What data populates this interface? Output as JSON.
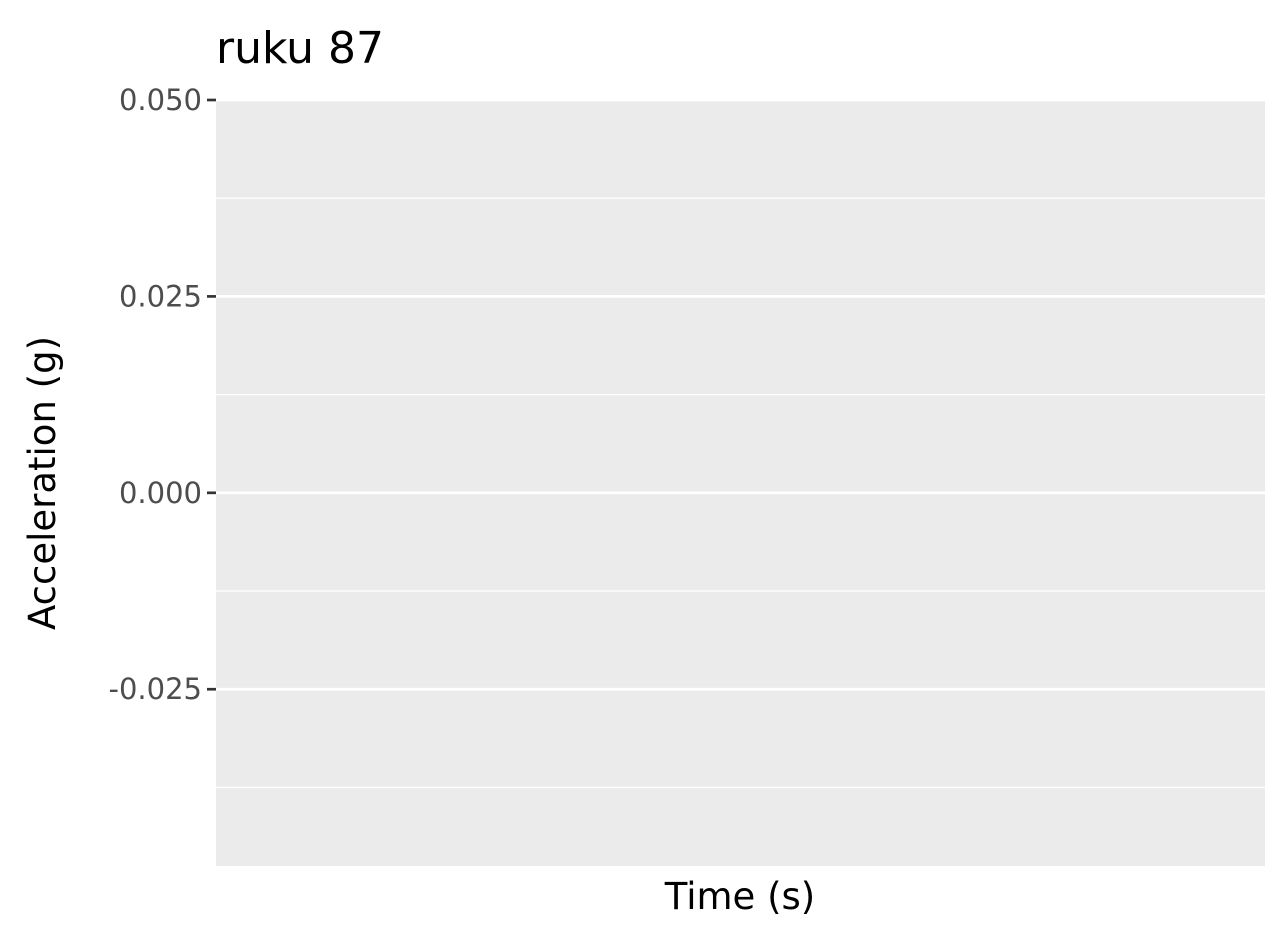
{
  "chart_data": {
    "type": "line",
    "title": "ruku 87",
    "xlabel": "Time (s)",
    "ylabel": "Acceleration (g)",
    "ylim": [
      -0.0475,
      0.05
    ],
    "y_ticks": [
      0.05,
      0.025,
      0.0,
      -0.025
    ],
    "y_tick_labels": [
      "0.050",
      "0.025",
      "0.000",
      "-0.025"
    ],
    "y_minor_gridlines": [
      0.0375,
      0.0125,
      -0.0125,
      -0.0375
    ],
    "x_ticks": [],
    "grid": true,
    "series": [],
    "colors": {
      "panel_background": "#ebebeb",
      "gridline": "#ffffff",
      "tick_mark": "#333333",
      "tick_label": "#4d4d4d",
      "title": "#000000"
    }
  }
}
